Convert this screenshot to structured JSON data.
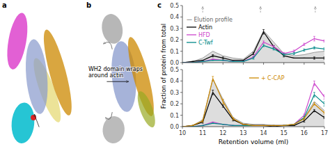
{
  "panel_labels": [
    "a",
    "b",
    "c"
  ],
  "annotations": [
    "WH2 domain wraps\naround actin"
  ],
  "chart_data": [
    {
      "type": "line",
      "ylabel": "Fraction of protein from total",
      "x": [
        10.0,
        10.5,
        11.0,
        11.5,
        12.0,
        12.5,
        13.0,
        13.5,
        14.0,
        14.5,
        15.0,
        15.5,
        16.0,
        16.5,
        17.0
      ],
      "xlim": [
        10,
        17
      ],
      "ylim": [
        0,
        0.5
      ],
      "xticks": [
        10,
        11,
        12,
        13,
        14,
        15,
        16,
        17
      ],
      "yticks": [
        {
          "value": 0.0,
          "label": "0.0"
        },
        0.1,
        0.2,
        0.3,
        0.4,
        0.5
      ],
      "tick_labels": "y",
      "legend": "upper left",
      "arrow_x": [
        11.0,
        13.85,
        16.55
      ],
      "series": [
        {
          "name": "— Elution profile",
          "type": "area",
          "color": "#bbbbbb",
          "values": [
            0.0,
            0.01,
            0.04,
            0.1,
            0.06,
            0.04,
            0.03,
            0.1,
            0.28,
            0.18,
            0.08,
            0.06,
            0.07,
            0.09,
            0.1
          ]
        },
        {
          "name": "Actin",
          "color": "#000000",
          "values": [
            0.0,
            0.01,
            0.02,
            0.06,
            0.04,
            0.02,
            0.02,
            0.08,
            0.27,
            0.14,
            0.06,
            0.04,
            0.04,
            0.04,
            0.04
          ],
          "error": [
            0.0,
            0.0,
            0.0,
            0.01,
            0.01,
            0.0,
            0.0,
            0.01,
            0.02,
            0.01,
            0.01,
            0.0,
            0.0,
            0.01,
            0.01
          ]
        },
        {
          "name": "HFD",
          "color": "#cc44cc",
          "values": [
            0.0,
            0.0,
            0.01,
            0.03,
            0.02,
            0.01,
            0.01,
            0.05,
            0.18,
            0.14,
            0.08,
            0.1,
            0.16,
            0.21,
            0.19
          ],
          "error": [
            0.0,
            0.0,
            0.0,
            0.0,
            0.0,
            0.0,
            0.0,
            0.01,
            0.01,
            0.01,
            0.01,
            0.01,
            0.01,
            0.02,
            0.01
          ]
        },
        {
          "name": "C-Twf",
          "color": "#008888",
          "values": [
            0.0,
            0.0,
            0.01,
            0.02,
            0.02,
            0.01,
            0.01,
            0.04,
            0.15,
            0.12,
            0.07,
            0.08,
            0.11,
            0.13,
            0.12
          ],
          "error": [
            0.0,
            0.0,
            0.0,
            0.0,
            0.0,
            0.0,
            0.0,
            0.01,
            0.01,
            0.01,
            0.01,
            0.01,
            0.01,
            0.01,
            0.01
          ]
        }
      ]
    },
    {
      "type": "line",
      "xlabel": "Retention volume (ml)",
      "x": [
        10.0,
        10.5,
        11.0,
        11.5,
        12.0,
        12.5,
        13.0,
        13.5,
        14.0,
        14.5,
        15.0,
        15.5,
        16.0,
        16.5,
        17.0
      ],
      "xlim": [
        10,
        17
      ],
      "ylim": [
        0,
        0.5
      ],
      "xticks": [
        10,
        11,
        12,
        13,
        14,
        15,
        16,
        17
      ],
      "yticks": [
        {
          "value": 0.0,
          "label": "0.0"
        },
        0.1,
        0.2,
        0.3,
        0.4,
        0.5
      ],
      "legend": "upper center",
      "series": [
        {
          "type": "area",
          "color": "#bbbbbb",
          "values": [
            0.0,
            0.01,
            0.06,
            0.42,
            0.24,
            0.08,
            0.03,
            0.02,
            0.02,
            0.01,
            0.01,
            0.02,
            0.08,
            0.22,
            0.14
          ]
        },
        {
          "color": "#000000",
          "values": [
            0.0,
            0.01,
            0.04,
            0.3,
            0.18,
            0.06,
            0.02,
            0.01,
            0.01,
            0.0,
            0.01,
            0.01,
            0.05,
            0.14,
            0.08
          ],
          "error": [
            0.0,
            0.0,
            0.01,
            0.02,
            0.01,
            0.01,
            0.0,
            0.0,
            0.0,
            0.0,
            0.0,
            0.0,
            0.01,
            0.01,
            0.01
          ]
        },
        {
          "color": "#cc44cc",
          "values": [
            0.0,
            0.0,
            0.01,
            0.04,
            0.02,
            0.01,
            0.01,
            0.01,
            0.01,
            0.01,
            0.01,
            0.02,
            0.1,
            0.38,
            0.26
          ],
          "error": [
            0.0,
            0.0,
            0.0,
            0.0,
            0.0,
            0.0,
            0.0,
            0.0,
            0.0,
            0.0,
            0.0,
            0.0,
            0.01,
            0.02,
            0.02
          ]
        },
        {
          "color": "#008888",
          "values": [
            0.0,
            0.0,
            0.01,
            0.03,
            0.02,
            0.01,
            0.01,
            0.01,
            0.01,
            0.01,
            0.01,
            0.02,
            0.08,
            0.28,
            0.2
          ],
          "error": [
            0.0,
            0.0,
            0.0,
            0.0,
            0.0,
            0.0,
            0.0,
            0.0,
            0.0,
            0.0,
            0.0,
            0.0,
            0.01,
            0.02,
            0.02
          ]
        },
        {
          "name": "+ C-CAP",
          "color": "#cc8800",
          "values": [
            0.0,
            0.01,
            0.05,
            0.42,
            0.22,
            0.07,
            0.02,
            0.01,
            0.01,
            0.01,
            0.01,
            0.02,
            0.07,
            0.2,
            0.12
          ],
          "error": [
            0.0,
            0.0,
            0.01,
            0.02,
            0.02,
            0.01,
            0.0,
            0.0,
            0.0,
            0.0,
            0.0,
            0.0,
            0.01,
            0.01,
            0.01
          ]
        }
      ]
    }
  ]
}
